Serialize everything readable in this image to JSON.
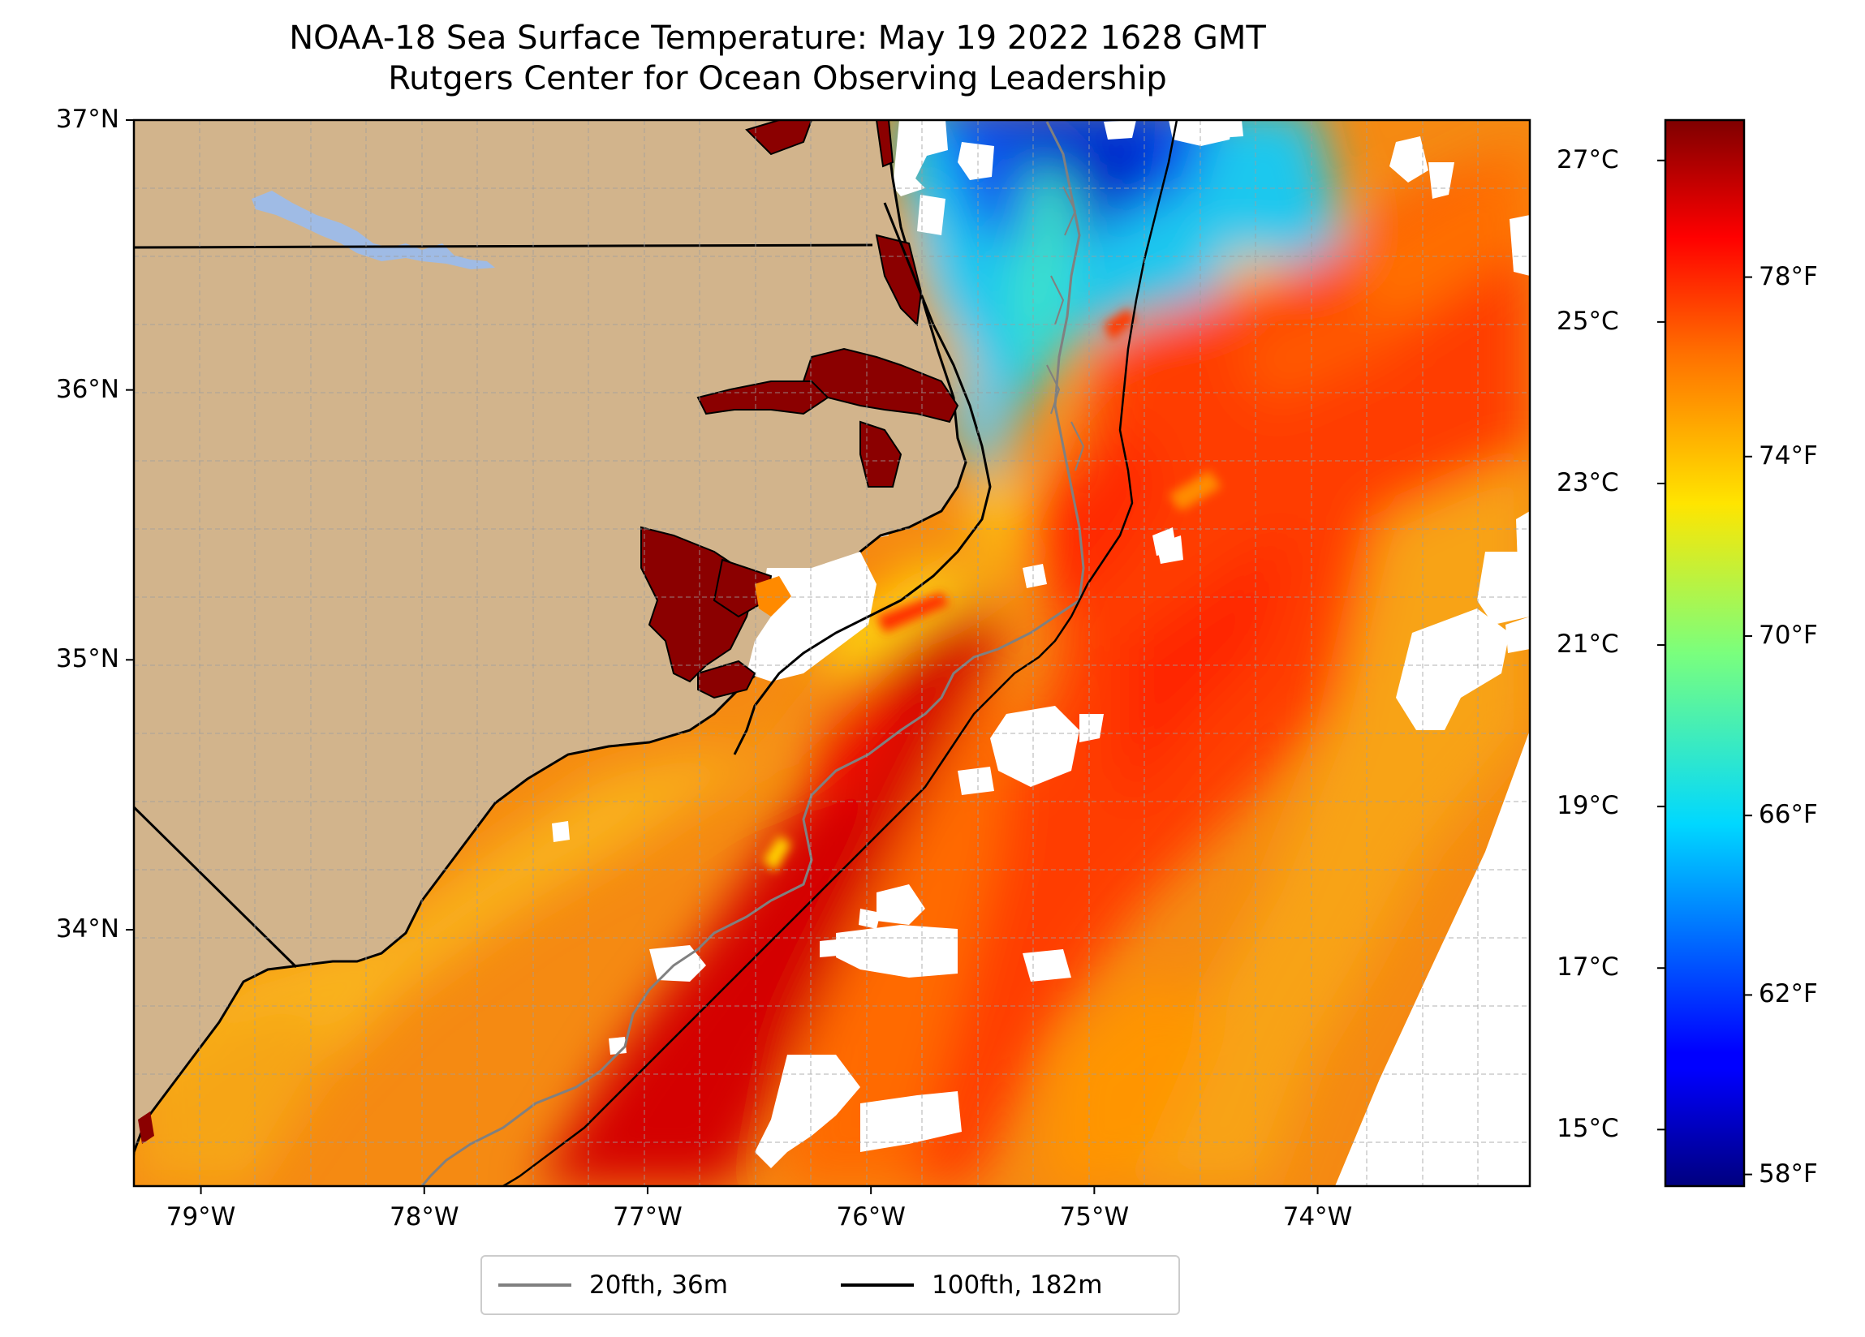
{
  "title": {
    "line1": "NOAA-18 Sea Surface Temperature: May 19 2022 1628 GMT",
    "line2": "Rutgers Center for Ocean Observing Leadership"
  },
  "map": {
    "extent": {
      "lon_min": -79.3,
      "lon_max": -73.05,
      "lat_min": 33.05,
      "lat_max": 37.0
    },
    "land_color": "#d2b48c",
    "lake_color": "#9fbbe5",
    "cloud_color": "#ffffff",
    "gridlines": true,
    "lat_ticks": [
      {
        "value": 37,
        "label": "37°N"
      },
      {
        "value": 36,
        "label": "36°N"
      },
      {
        "value": 35,
        "label": "35°N"
      },
      {
        "value": 34,
        "label": "34°N"
      }
    ],
    "lon_ticks": [
      {
        "value": -79,
        "label": "79°W"
      },
      {
        "value": -78,
        "label": "78°W"
      },
      {
        "value": -77,
        "label": "77°W"
      },
      {
        "value": -76,
        "label": "76°W"
      },
      {
        "value": -75,
        "label": "75°W"
      },
      {
        "value": -74,
        "label": "74°W"
      }
    ],
    "state_border_va_nc_lat": 36.55
  },
  "colorbar": {
    "colormap": "jet",
    "range_c": [
      14.3,
      27.5
    ],
    "celsius_ticks": [
      {
        "value": 27,
        "label": "27°C"
      },
      {
        "value": 25,
        "label": "25°C"
      },
      {
        "value": 23,
        "label": "23°C"
      },
      {
        "value": 21,
        "label": "21°C"
      },
      {
        "value": 19,
        "label": "19°C"
      },
      {
        "value": 17,
        "label": "17°C"
      },
      {
        "value": 15,
        "label": "15°C"
      }
    ],
    "fahrenheit_ticks": [
      {
        "value": 78,
        "label": "78°F"
      },
      {
        "value": 74,
        "label": "74°F"
      },
      {
        "value": 70,
        "label": "70°F"
      },
      {
        "value": 66,
        "label": "66°F"
      },
      {
        "value": 62,
        "label": "62°F"
      },
      {
        "value": 58,
        "label": "58°F"
      }
    ]
  },
  "legend": {
    "items": [
      {
        "label": "20fth, 36m",
        "color": "#808080"
      },
      {
        "label": "100fth, 182m",
        "color": "#000000"
      }
    ]
  }
}
